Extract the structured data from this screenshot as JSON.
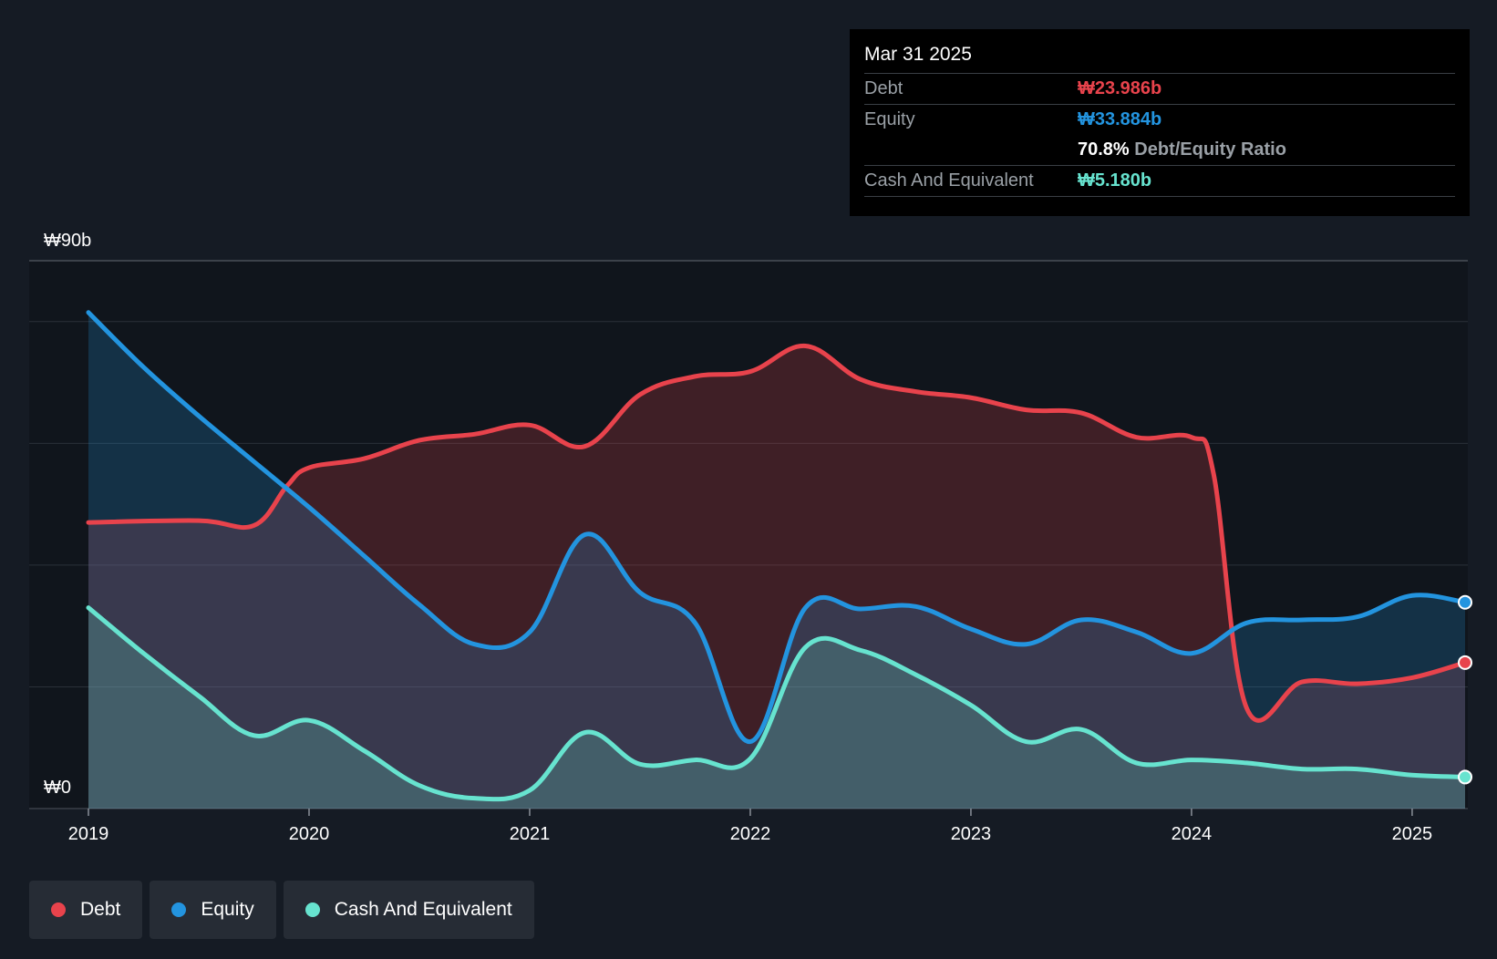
{
  "tooltip": {
    "date": "Mar 31 2025",
    "debt_label": "Debt",
    "debt_value": "₩23.986b",
    "equity_label": "Equity",
    "equity_value": "₩33.884b",
    "ratio_value": "70.8%",
    "ratio_label": "Debt/Equity Ratio",
    "cash_label": "Cash And Equivalent",
    "cash_value": "₩5.180b"
  },
  "legend": {
    "debt": "Debt",
    "equity": "Equity",
    "cash": "Cash And Equivalent"
  },
  "colors": {
    "debt": "#e8434c",
    "equity": "#2394df",
    "cash": "#67e3cf",
    "background": "#151b24",
    "plot_background": "#10151c"
  },
  "chart_data": {
    "type": "area",
    "ylim": [
      0,
      90
    ],
    "y_tick_labels": {
      "top": "₩90b",
      "bottom": "₩0"
    },
    "x_ticks": [
      {
        "value": 2019,
        "label": "2019"
      },
      {
        "value": 2020,
        "label": "2020"
      },
      {
        "value": 2021,
        "label": "2021"
      },
      {
        "value": 2022,
        "label": "2022"
      },
      {
        "value": 2023,
        "label": "2023"
      },
      {
        "value": 2024,
        "label": "2024"
      },
      {
        "value": 2025,
        "label": "2025"
      }
    ],
    "xlim": [
      2018.74,
      2025.24
    ],
    "grid": true,
    "series": [
      {
        "name": "Debt",
        "key": "debt",
        "points": [
          [
            2019.0,
            47.0
          ],
          [
            2019.5,
            47.3
          ],
          [
            2019.75,
            46.5
          ],
          [
            2019.9,
            53
          ],
          [
            2020.0,
            56
          ],
          [
            2020.25,
            57.5
          ],
          [
            2020.5,
            60.5
          ],
          [
            2020.75,
            61.5
          ],
          [
            2021.0,
            63
          ],
          [
            2021.25,
            59.5
          ],
          [
            2021.5,
            68
          ],
          [
            2021.75,
            71
          ],
          [
            2022.0,
            71.8
          ],
          [
            2022.25,
            76
          ],
          [
            2022.5,
            70.5
          ],
          [
            2022.75,
            68.5
          ],
          [
            2023.0,
            67.5
          ],
          [
            2023.25,
            65.5
          ],
          [
            2023.5,
            65
          ],
          [
            2023.75,
            61
          ],
          [
            2024.0,
            61
          ],
          [
            2024.1,
            55
          ],
          [
            2024.25,
            16.5
          ],
          [
            2024.5,
            20.8
          ],
          [
            2024.75,
            20.5
          ],
          [
            2025.0,
            21.5
          ],
          [
            2025.24,
            23.986
          ]
        ]
      },
      {
        "name": "Equity",
        "key": "equity",
        "points": [
          [
            2019.0,
            81.5
          ],
          [
            2019.25,
            72.5
          ],
          [
            2019.5,
            64.5
          ],
          [
            2019.75,
            57
          ],
          [
            2020.0,
            49.5
          ],
          [
            2020.25,
            41.5
          ],
          [
            2020.5,
            33.5
          ],
          [
            2020.75,
            27
          ],
          [
            2021.0,
            29
          ],
          [
            2021.25,
            45
          ],
          [
            2021.5,
            35.5
          ],
          [
            2021.75,
            30.5
          ],
          [
            2022.0,
            11
          ],
          [
            2022.25,
            33
          ],
          [
            2022.5,
            32.8
          ],
          [
            2022.75,
            33.2
          ],
          [
            2023.0,
            29.5
          ],
          [
            2023.25,
            27
          ],
          [
            2023.5,
            31
          ],
          [
            2023.75,
            29
          ],
          [
            2024.0,
            25.5
          ],
          [
            2024.25,
            30.5
          ],
          [
            2024.5,
            31
          ],
          [
            2024.75,
            31.5
          ],
          [
            2025.0,
            35
          ],
          [
            2025.24,
            33.884
          ]
        ]
      },
      {
        "name": "Cash And Equivalent",
        "key": "cash",
        "points": [
          [
            2019.0,
            33
          ],
          [
            2019.25,
            25.5
          ],
          [
            2019.5,
            18.5
          ],
          [
            2019.75,
            12
          ],
          [
            2020.0,
            14.5
          ],
          [
            2020.25,
            9.5
          ],
          [
            2020.5,
            3.8
          ],
          [
            2020.75,
            1.7
          ],
          [
            2021.0,
            3
          ],
          [
            2021.25,
            12.5
          ],
          [
            2021.5,
            7.3
          ],
          [
            2021.75,
            8
          ],
          [
            2022.0,
            8.2
          ],
          [
            2022.25,
            26.5
          ],
          [
            2022.5,
            26
          ],
          [
            2022.75,
            22
          ],
          [
            2023.0,
            17
          ],
          [
            2023.25,
            11
          ],
          [
            2023.5,
            13
          ],
          [
            2023.75,
            7.5
          ],
          [
            2024.0,
            8
          ],
          [
            2024.25,
            7.5
          ],
          [
            2024.5,
            6.5
          ],
          [
            2024.75,
            6.5
          ],
          [
            2025.0,
            5.5
          ],
          [
            2025.24,
            5.18
          ]
        ]
      }
    ]
  }
}
